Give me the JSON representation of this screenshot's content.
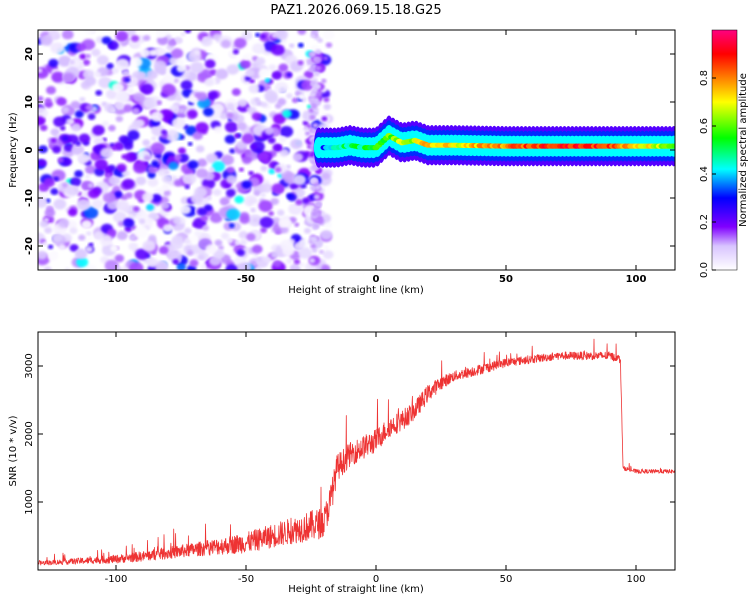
{
  "figure_title": "PAZ1.2026.069.15.18.G25",
  "chart_data": [
    {
      "type": "heatmap",
      "title": "PAZ1.2026.069.15.18.G25",
      "xlabel": "Height of straight line (km)",
      "ylabel": "Frequency (Hz)",
      "xlim": [
        -130,
        115
      ],
      "ylim": [
        -25,
        25
      ],
      "xticks": [
        -100,
        -50,
        0,
        50,
        100
      ],
      "yticks": [
        -20,
        -10,
        0,
        10,
        20
      ],
      "xtick_labels": [
        "-100",
        "-50",
        "0",
        "50",
        "100"
      ],
      "ytick_labels": [
        "-20",
        "-10",
        "0",
        "10",
        "20"
      ],
      "colorbar": {
        "label": "Normalized spectral amplitude",
        "range": [
          0,
          1
        ],
        "ticks": [
          0.0,
          0.2,
          0.4,
          0.6,
          0.8
        ],
        "tick_labels": [
          "0.0",
          "0.2",
          "0.4",
          "0.6",
          "0.8"
        ],
        "colors": [
          "#ffffff",
          "#8000ff",
          "#0000ff",
          "#00ffff",
          "#00ff00",
          "#ffff00",
          "#ff8000",
          "#ff0000",
          "#ff0080"
        ]
      },
      "ridge": {
        "description": "dominant frequency track",
        "x": [
          -20,
          -15,
          -10,
          -5,
          0,
          5,
          10,
          15,
          20,
          30,
          50,
          70,
          90,
          115
        ],
        "freq": [
          0.5,
          0.5,
          1.0,
          0.5,
          0.5,
          3.0,
          1.5,
          2.0,
          1.0,
          1.0,
          0.8,
          0.8,
          0.8,
          0.8
        ],
        "amplitude": [
          0.35,
          0.45,
          0.5,
          0.5,
          0.55,
          0.6,
          0.65,
          0.65,
          0.75,
          0.7,
          0.8,
          0.9,
          0.85,
          0.6
        ]
      }
    },
    {
      "type": "line",
      "title": "",
      "xlabel": "Height of straight line (km)",
      "ylabel": "SNR (10 * v/v)",
      "xlim": [
        -130,
        115
      ],
      "ylim": [
        0,
        3500
      ],
      "xticks": [
        -100,
        -50,
        0,
        50,
        100
      ],
      "yticks": [
        1000,
        2000,
        3000
      ],
      "xtick_labels": [
        "-100",
        "-50",
        "0",
        "50",
        "100"
      ],
      "ytick_labels": [
        "1000",
        "2000",
        "3000"
      ],
      "series": [
        {
          "name": "SNR",
          "color": "#ee3333",
          "x": [
            -130,
            -120,
            -110,
            -100,
            -90,
            -80,
            -70,
            -60,
            -50,
            -40,
            -30,
            -25,
            -20,
            -17,
            -15,
            -10,
            -5,
            0,
            5,
            10,
            15,
            20,
            25,
            30,
            40,
            50,
            60,
            70,
            80,
            90,
            94,
            95,
            100,
            110,
            115
          ],
          "values": [
            100,
            120,
            140,
            160,
            200,
            250,
            300,
            350,
            400,
            500,
            600,
            650,
            700,
            1100,
            1500,
            1700,
            1800,
            1900,
            2100,
            2200,
            2350,
            2600,
            2750,
            2850,
            2950,
            3050,
            3100,
            3150,
            3150,
            3150,
            3100,
            1500,
            1450,
            1450,
            1450
          ],
          "noise": [
            60,
            80,
            100,
            120,
            150,
            180,
            200,
            250,
            300,
            350,
            400,
            450,
            450,
            450,
            400,
            350,
            350,
            350,
            300,
            300,
            280,
            250,
            200,
            150,
            150,
            130,
            120,
            120,
            120,
            120,
            120,
            60,
            60,
            60,
            60
          ]
        }
      ]
    }
  ]
}
